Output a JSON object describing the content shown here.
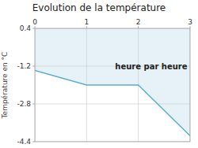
{
  "chart_data": {
    "type": "area",
    "title": "Evolution de la température",
    "ylabel": "Température en °C",
    "x": [
      0,
      1,
      2,
      3
    ],
    "values": [
      -1.38,
      -2.0,
      -2.0,
      -4.15
    ],
    "color": "#5aafcc",
    "xlim": [
      0,
      3
    ],
    "ylim": [
      -4.4,
      0.4
    ],
    "xticks": [
      0,
      1,
      2,
      3
    ],
    "yticks": [
      0.4,
      -1.2,
      -2.8,
      -4.4
    ],
    "grid": true,
    "annotations": [
      {
        "text": "heure par heure",
        "x": 1.55,
        "y": -1.1
      }
    ]
  }
}
